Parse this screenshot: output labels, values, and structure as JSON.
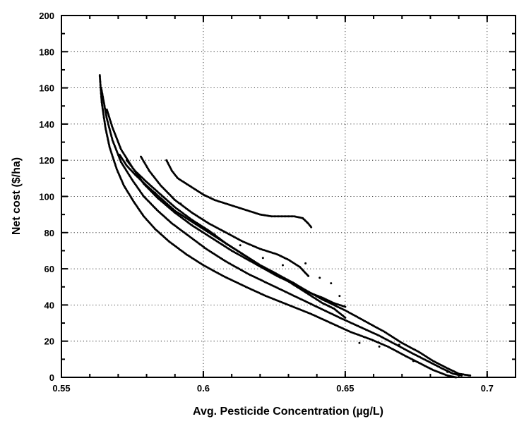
{
  "chart_data": {
    "type": "scatter",
    "title": "",
    "xlabel": "Avg. Pesticide Concentration (µg/L)",
    "ylabel": "Net cost ($/ha)",
    "xlim": [
      0.55,
      0.71
    ],
    "ylim": [
      0,
      200
    ],
    "x_ticks": [
      "0.55",
      "0.6",
      "0.65",
      "0.7"
    ],
    "y_ticks": [
      "0",
      "20",
      "40",
      "60",
      "80",
      "100",
      "120",
      "140",
      "160",
      "180",
      "200"
    ],
    "grid": true,
    "legend": "none",
    "series": [
      {
        "band": "lower-frontier",
        "points": [
          [
            0.5635,
            167
          ],
          [
            0.5642,
            152
          ],
          [
            0.5655,
            138
          ],
          [
            0.567,
            127
          ],
          [
            0.5695,
            115
          ],
          [
            0.572,
            106
          ],
          [
            0.5755,
            97
          ],
          [
            0.579,
            89
          ],
          [
            0.583,
            82
          ],
          [
            0.588,
            75
          ],
          [
            0.594,
            68
          ],
          [
            0.6,
            62
          ],
          [
            0.607,
            56
          ],
          [
            0.615,
            50
          ],
          [
            0.622,
            45
          ],
          [
            0.63,
            40
          ],
          [
            0.638,
            35
          ],
          [
            0.645,
            30
          ],
          [
            0.652,
            25
          ],
          [
            0.659,
            21
          ],
          [
            0.665,
            17
          ],
          [
            0.671,
            12
          ],
          [
            0.676,
            8
          ],
          [
            0.681,
            4
          ],
          [
            0.686,
            1
          ],
          [
            0.689,
            0
          ]
        ]
      },
      {
        "band": "band-2",
        "points": [
          [
            0.564,
            160
          ],
          [
            0.566,
            143
          ],
          [
            0.568,
            131
          ],
          [
            0.571,
            119
          ],
          [
            0.575,
            109
          ],
          [
            0.579,
            100
          ],
          [
            0.584,
            92
          ],
          [
            0.589,
            85
          ],
          [
            0.595,
            78
          ],
          [
            0.601,
            71
          ],
          [
            0.608,
            64
          ],
          [
            0.616,
            57
          ],
          [
            0.624,
            51
          ],
          [
            0.632,
            45
          ],
          [
            0.64,
            39
          ],
          [
            0.648,
            33
          ],
          [
            0.655,
            28
          ],
          [
            0.662,
            23
          ],
          [
            0.668,
            18
          ],
          [
            0.674,
            13
          ],
          [
            0.679,
            9
          ],
          [
            0.684,
            5
          ],
          [
            0.688,
            2
          ],
          [
            0.691,
            1
          ]
        ]
      },
      {
        "band": "band-3",
        "points": [
          [
            0.566,
            148
          ],
          [
            0.568,
            138
          ],
          [
            0.571,
            126
          ],
          [
            0.575,
            116
          ],
          [
            0.579,
            107
          ],
          [
            0.584,
            99
          ],
          [
            0.59,
            91
          ],
          [
            0.596,
            84
          ],
          [
            0.603,
            77
          ],
          [
            0.61,
            70
          ],
          [
            0.618,
            63
          ],
          [
            0.626,
            56
          ],
          [
            0.634,
            50
          ],
          [
            0.642,
            43
          ],
          [
            0.65,
            37
          ],
          [
            0.657,
            31
          ],
          [
            0.664,
            25
          ],
          [
            0.67,
            19
          ],
          [
            0.676,
            14
          ],
          [
            0.681,
            9
          ],
          [
            0.686,
            5
          ],
          [
            0.69,
            2
          ],
          [
            0.694,
            1
          ]
        ]
      },
      {
        "band": "band-4",
        "points": [
          [
            0.5705,
            123
          ],
          [
            0.573,
            117
          ],
          [
            0.576,
            112
          ],
          [
            0.58,
            106
          ],
          [
            0.585,
            99
          ],
          [
            0.59,
            92
          ],
          [
            0.596,
            86
          ],
          [
            0.602,
            80
          ],
          [
            0.608,
            74
          ],
          [
            0.614,
            68
          ],
          [
            0.62,
            62
          ],
          [
            0.626,
            57
          ],
          [
            0.632,
            52
          ],
          [
            0.637,
            47
          ],
          [
            0.642,
            44
          ],
          [
            0.646,
            41
          ],
          [
            0.65,
            39
          ]
        ]
      },
      {
        "band": "band-5",
        "points": [
          [
            0.573,
            120
          ],
          [
            0.576,
            114
          ],
          [
            0.58,
            108
          ],
          [
            0.585,
            101
          ],
          [
            0.59,
            94
          ],
          [
            0.596,
            87
          ],
          [
            0.602,
            81
          ],
          [
            0.608,
            74
          ],
          [
            0.614,
            68
          ],
          [
            0.62,
            62
          ],
          [
            0.626,
            57
          ],
          [
            0.632,
            51
          ],
          [
            0.637,
            46
          ],
          [
            0.642,
            41
          ],
          [
            0.646,
            38
          ],
          [
            0.65,
            33
          ]
        ]
      },
      {
        "band": "band-6",
        "points": [
          [
            0.578,
            122
          ],
          [
            0.581,
            114
          ],
          [
            0.585,
            106
          ],
          [
            0.59,
            98
          ],
          [
            0.596,
            91
          ],
          [
            0.602,
            85
          ],
          [
            0.608,
            80
          ],
          [
            0.614,
            75
          ],
          [
            0.62,
            71
          ],
          [
            0.626,
            68
          ],
          [
            0.63,
            65
          ],
          [
            0.634,
            61
          ],
          [
            0.637,
            56
          ]
        ]
      },
      {
        "band": "upper-cluster",
        "points": [
          [
            0.587,
            120
          ],
          [
            0.589,
            114
          ],
          [
            0.591,
            110
          ],
          [
            0.594,
            107
          ],
          [
            0.597,
            104
          ],
          [
            0.6,
            101
          ],
          [
            0.604,
            98
          ],
          [
            0.608,
            96
          ],
          [
            0.612,
            94
          ],
          [
            0.616,
            92
          ],
          [
            0.62,
            90
          ],
          [
            0.624,
            89
          ],
          [
            0.628,
            89
          ],
          [
            0.632,
            89
          ],
          [
            0.635,
            88
          ],
          [
            0.637,
            85
          ],
          [
            0.638,
            83
          ]
        ]
      }
    ],
    "outliers": [
      [
        0.583,
        102
      ],
      [
        0.592,
        96
      ],
      [
        0.604,
        79
      ],
      [
        0.613,
        73
      ],
      [
        0.621,
        66
      ],
      [
        0.628,
        62
      ],
      [
        0.636,
        63
      ],
      [
        0.641,
        55
      ],
      [
        0.645,
        52
      ],
      [
        0.648,
        45
      ],
      [
        0.655,
        19
      ],
      [
        0.662,
        17
      ],
      [
        0.669,
        18
      ],
      [
        0.674,
        9
      ],
      [
        0.686,
        3
      ],
      [
        0.689,
        2
      ]
    ]
  }
}
